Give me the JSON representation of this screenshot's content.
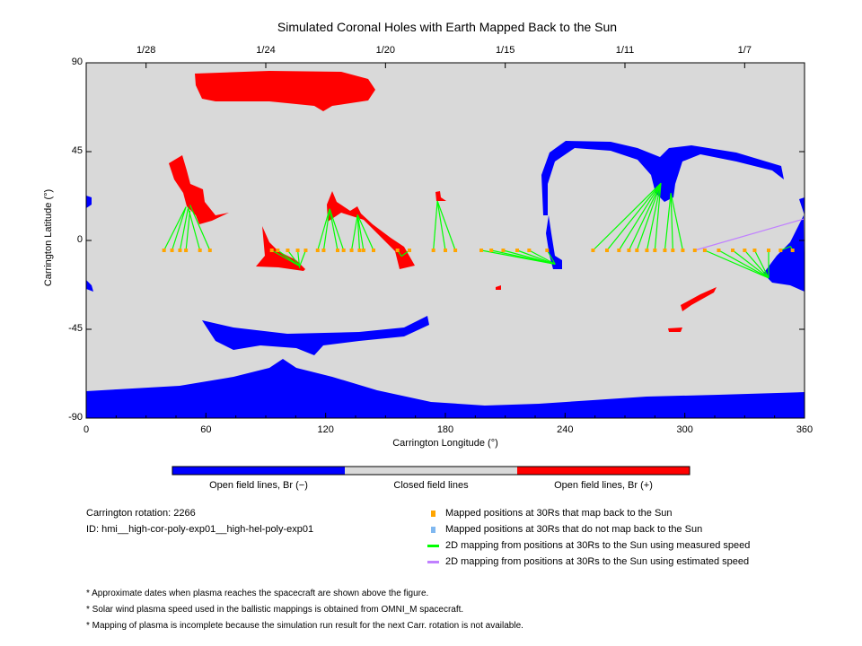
{
  "chart_data": {
    "type": "map",
    "title": "Simulated Coronal Holes with Earth Mapped Back to the Sun",
    "xlabel": "Carrington Longitude (°)",
    "ylabel": "Carrington Latitude (°)",
    "xlim": [
      0,
      360
    ],
    "ylim": [
      -90,
      90
    ],
    "xticks": [
      0,
      60,
      120,
      180,
      240,
      300,
      360
    ],
    "yticks": [
      90,
      45,
      0,
      -45,
      -90
    ],
    "top_dates": [
      {
        "label": "1/28",
        "lon": 30
      },
      {
        "label": "1/24",
        "lon": 90
      },
      {
        "label": "1/20",
        "lon": 150
      },
      {
        "label": "1/15",
        "lon": 210
      },
      {
        "label": "1/11",
        "lon": 270
      },
      {
        "label": "1/7",
        "lon": 330
      }
    ],
    "colorbar": [
      {
        "label": "Open field lines, Br (−)",
        "color": "#0000ff"
      },
      {
        "label": "Closed field lines",
        "color": "#d9d9d9"
      },
      {
        "label": "Open field lines, Br (+)",
        "color": "#ff0000"
      }
    ],
    "footpoint_lat": -5,
    "mappings_measured": [
      [
        39,
        50,
        17
      ],
      [
        43,
        50,
        17
      ],
      [
        47,
        51,
        16
      ],
      [
        50,
        52,
        15
      ],
      [
        57,
        51,
        17
      ],
      [
        62,
        52,
        18
      ],
      [
        93,
        107,
        -13
      ],
      [
        96,
        107,
        -13
      ],
      [
        101,
        107,
        -13
      ],
      [
        106,
        107,
        -14
      ],
      [
        110,
        107,
        -13
      ],
      [
        116,
        122,
        16
      ],
      [
        119,
        122,
        16
      ],
      [
        126,
        122,
        16
      ],
      [
        129,
        122,
        16
      ],
      [
        133,
        136,
        13
      ],
      [
        137,
        136,
        13
      ],
      [
        139,
        136,
        13
      ],
      [
        144,
        136,
        13
      ],
      [
        156,
        158,
        -8
      ],
      [
        162,
        158,
        -8
      ],
      [
        174,
        176,
        20
      ],
      [
        180,
        176,
        20
      ],
      [
        185,
        176,
        20
      ],
      [
        198,
        235,
        -12
      ],
      [
        203,
        235,
        -12
      ],
      [
        209,
        235,
        -12
      ],
      [
        216,
        235,
        -12
      ],
      [
        222,
        235,
        -12
      ],
      [
        231,
        235,
        -12
      ],
      [
        254,
        288,
        29
      ],
      [
        261,
        288,
        29
      ],
      [
        267,
        288,
        29
      ],
      [
        272,
        288,
        29
      ],
      [
        276,
        288,
        29
      ],
      [
        281,
        288,
        29
      ],
      [
        285,
        288,
        29
      ],
      [
        290,
        293,
        24
      ],
      [
        294,
        293,
        24
      ],
      [
        299,
        293,
        24
      ],
      [
        310,
        342,
        -19
      ],
      [
        317,
        342,
        -19
      ],
      [
        324,
        342,
        -19
      ],
      [
        330,
        342,
        -19
      ],
      [
        335,
        342,
        -19
      ],
      [
        342,
        342,
        -19
      ],
      [
        348,
        353,
        -3
      ],
      [
        354,
        353,
        -3
      ]
    ],
    "mappings_estimated": [
      [
        305,
        360,
        11
      ]
    ],
    "colors": {
      "open_neg": "#0000ff",
      "open_pos": "#ff0000",
      "closed": "#d9d9d9",
      "footpoint": "#ffa500",
      "no_map": "#80b8f0",
      "measured": "#00ff00",
      "estimated": "#c080ff"
    }
  },
  "info": {
    "rotation": "Carrington rotation: 2266",
    "id": "ID: hmi__high-cor-poly-exp01__high-hel-poly-exp01"
  },
  "legend": [
    "Mapped positions at 30Rs that map back to the Sun",
    "Mapped positions at 30Rs that do not map back to the Sun",
    "2D mapping from positions at 30Rs to the Sun using measured speed",
    "2D mapping from positions at 30Rs to the Sun using estimated speed"
  ],
  "notes": [
    "* Approximate dates when plasma reaches the spacecraft are shown above the figure.",
    "* Solar wind plasma speed used in the ballistic mappings is obtained from OMNI_M spacecraft.",
    "* Mapping of plasma is incomplete because the simulation run result for the next Carr. rotation is not available."
  ]
}
